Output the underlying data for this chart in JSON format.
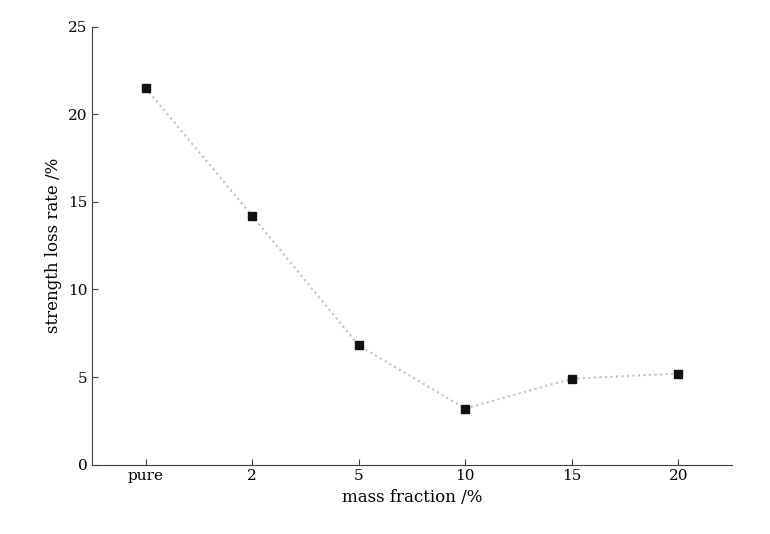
{
  "x_labels": [
    "pure",
    "2",
    "5",
    "10",
    "15",
    "20"
  ],
  "x_positions": [
    0,
    1,
    2,
    3,
    4,
    5
  ],
  "y_values": [
    21.5,
    14.2,
    6.8,
    3.2,
    4.9,
    5.2
  ],
  "yticks": [
    0,
    5,
    10,
    15,
    20,
    25
  ],
  "ylim": [
    0,
    25
  ],
  "xlabel": "mass fraction /%",
  "ylabel": "strength loss rate /%",
  "line_color": "#c0c0c0",
  "marker_color": "#111111",
  "marker_size": 6,
  "line_style": "dotted",
  "background_color": "#ffffff",
  "xlabel_fontsize": 12,
  "ylabel_fontsize": 12,
  "tick_fontsize": 11,
  "font_family": "DejaVu Serif"
}
